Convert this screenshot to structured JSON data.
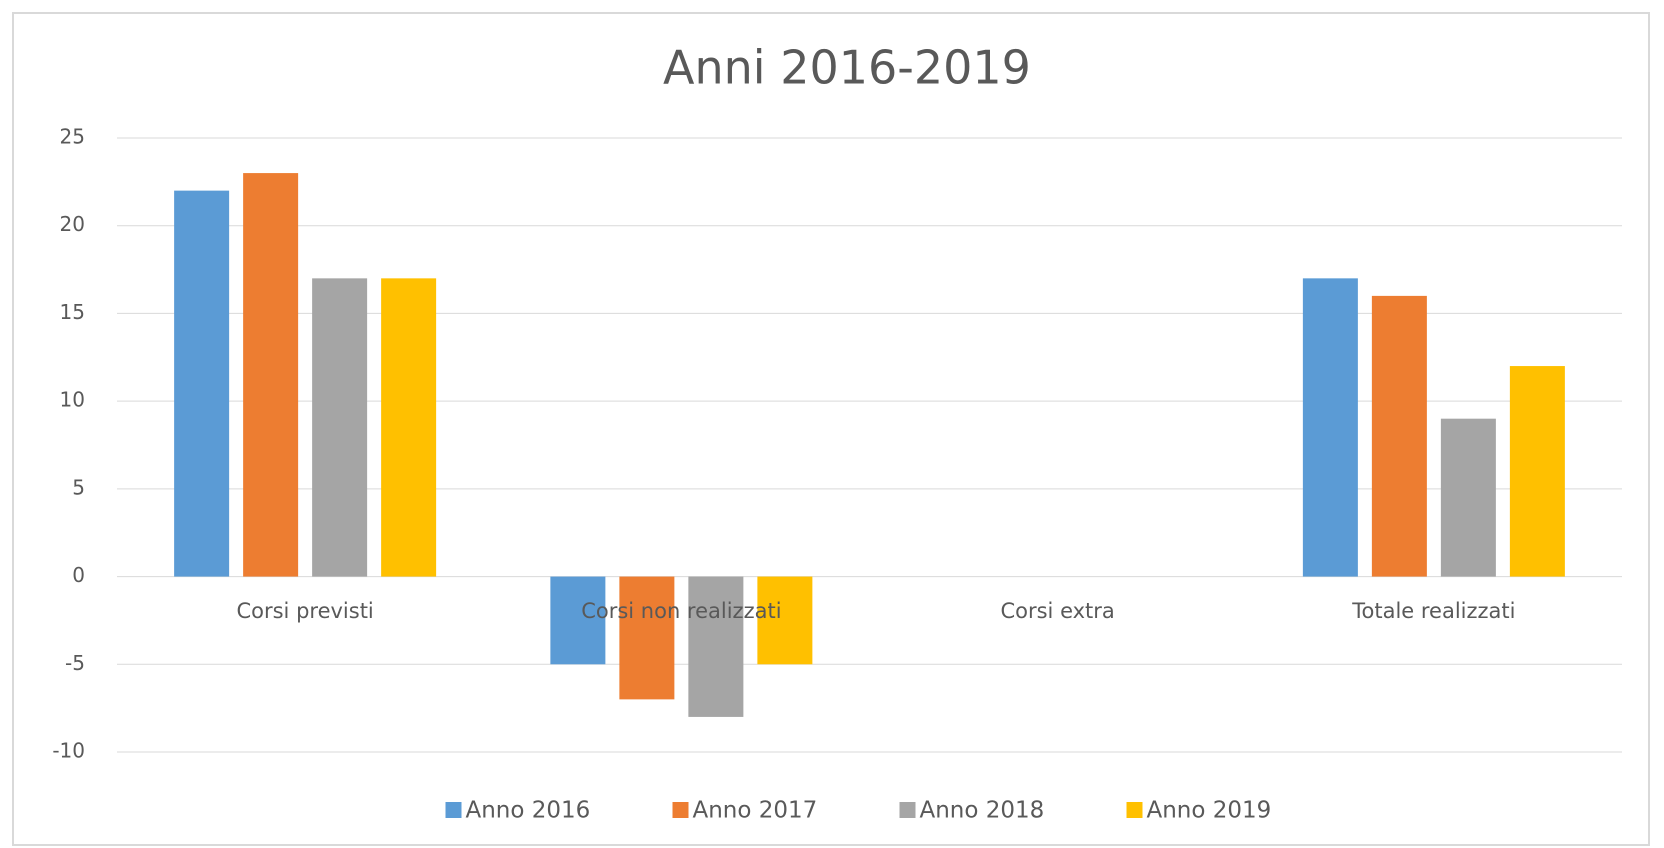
{
  "chart_data": {
    "type": "bar",
    "title": "Anni 2016-2019",
    "categories": [
      "Corsi previsti",
      "Corsi non realizzati",
      "Corsi extra",
      "Totale realizzati"
    ],
    "series": [
      {
        "name": "Anno 2016",
        "color": "#5b9bd5",
        "values": [
          22,
          -5,
          0,
          17
        ]
      },
      {
        "name": "Anno 2017",
        "color": "#ed7d31",
        "values": [
          23,
          -7,
          0,
          16
        ]
      },
      {
        "name": "Anno 2018",
        "color": "#a5a5a5",
        "values": [
          17,
          -8,
          0,
          9
        ]
      },
      {
        "name": "Anno 2019",
        "color": "#ffc000",
        "values": [
          17,
          -5,
          0,
          12
        ]
      }
    ],
    "ylim": [
      -10,
      25
    ],
    "yticks": [
      -10,
      -5,
      0,
      5,
      10,
      15,
      20,
      25
    ],
    "grid": true,
    "legend": "bottom"
  }
}
